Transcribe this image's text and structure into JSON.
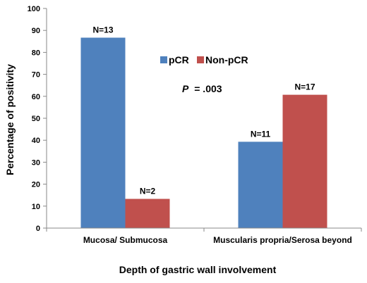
{
  "chart_data": {
    "type": "bar",
    "categories": [
      "Mucosa/ Submucosa",
      "Muscularis propria/Serosa beyond"
    ],
    "series": [
      {
        "name": "pCR",
        "values": [
          86.7,
          39.3
        ],
        "labels": [
          "N=13",
          "N=11"
        ],
        "color": "#4F81BD"
      },
      {
        "name": "Non-pCR",
        "values": [
          13.3,
          60.7
        ],
        "labels": [
          "N=2",
          "N=17"
        ],
        "color": "#C0504D"
      }
    ],
    "title": "",
    "xlabel": "Depth of gastric wall involvement",
    "ylabel": "Percentage of positivity",
    "ylim": [
      0,
      100
    ],
    "yticks": [
      0,
      10,
      20,
      30,
      40,
      50,
      60,
      70,
      80,
      90,
      100
    ],
    "grid": false,
    "legend": "top-center",
    "annotation_p_label": "P",
    "annotation_p_value": "= .003"
  }
}
